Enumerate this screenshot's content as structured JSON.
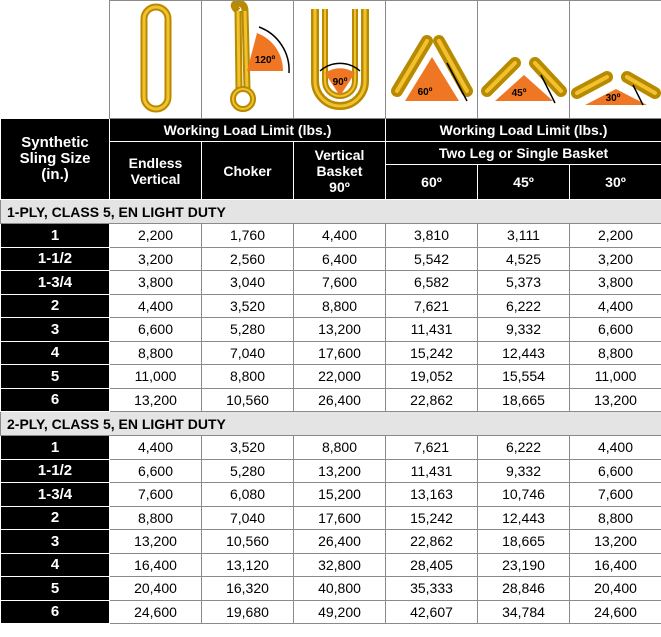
{
  "table": {
    "corner": [
      "Synthetic",
      "Sling Size",
      "(in.)"
    ],
    "group_headers": [
      "Working Load Limit (lbs.)",
      "Working Load Limit (lbs.)"
    ],
    "subgroup": "Two Leg or Single Basket",
    "columns": [
      [
        "Endless",
        "Vertical"
      ],
      [
        "Choker"
      ],
      [
        "Vertical",
        "Basket",
        "90º"
      ],
      [
        "60º"
      ],
      [
        "45º"
      ],
      [
        "30º"
      ]
    ],
    "angle_labels": [
      "120º",
      "90º",
      "60º",
      "45º",
      "30º"
    ],
    "sections": [
      {
        "title": "1-PLY, CLASS 5, EN LIGHT DUTY",
        "rows": [
          [
            "1",
            "2,200",
            "1,760",
            "4,400",
            "3,810",
            "3,111",
            "2,200"
          ],
          [
            "1-1/2",
            "3,200",
            "2,560",
            "6,400",
            "5,542",
            "4,525",
            "3,200"
          ],
          [
            "1-3/4",
            "3,800",
            "3,040",
            "7,600",
            "6,582",
            "5,373",
            "3,800"
          ],
          [
            "2",
            "4,400",
            "3,520",
            "8,800",
            "7,621",
            "6,222",
            "4,400"
          ],
          [
            "3",
            "6,600",
            "5,280",
            "13,200",
            "11,431",
            "9,332",
            "6,600"
          ],
          [
            "4",
            "8,800",
            "7,040",
            "17,600",
            "15,242",
            "12,443",
            "8,800"
          ],
          [
            "5",
            "11,000",
            "8,800",
            "22,000",
            "19,052",
            "15,554",
            "11,000"
          ],
          [
            "6",
            "13,200",
            "10,560",
            "26,400",
            "22,862",
            "18,665",
            "13,200"
          ]
        ]
      },
      {
        "title": "2-PLY, CLASS 5, EN LIGHT DUTY",
        "rows": [
          [
            "1",
            "4,400",
            "3,520",
            "8,800",
            "7,621",
            "6,222",
            "4,400"
          ],
          [
            "1-1/2",
            "6,600",
            "5,280",
            "13,200",
            "11,431",
            "9,332",
            "6,600"
          ],
          [
            "1-3/4",
            "7,600",
            "6,080",
            "15,200",
            "13,163",
            "10,746",
            "7,600"
          ],
          [
            "2",
            "8,800",
            "7,040",
            "17,600",
            "15,242",
            "12,443",
            "8,800"
          ],
          [
            "3",
            "13,200",
            "10,560",
            "26,400",
            "22,862",
            "18,665",
            "13,200"
          ],
          [
            "4",
            "16,400",
            "13,120",
            "32,800",
            "28,405",
            "23,190",
            "16,400"
          ],
          [
            "5",
            "20,400",
            "16,320",
            "40,800",
            "35,333",
            "28,846",
            "20,400"
          ],
          [
            "6",
            "24,600",
            "19,680",
            "49,200",
            "42,607",
            "34,784",
            "24,600"
          ]
        ]
      }
    ]
  }
}
